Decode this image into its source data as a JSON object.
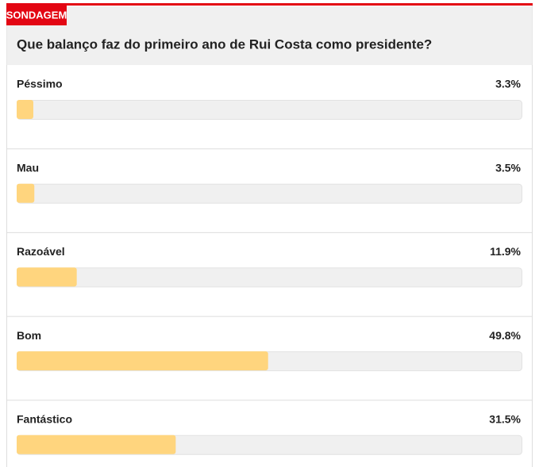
{
  "chart_data": {
    "type": "bar",
    "tag": "SONDAGEM",
    "title": "Que balanço faz do primeiro ano de Rui Costa como presidente?",
    "categories": [
      "Péssimo",
      "Mau",
      "Razoável",
      "Bom",
      "Fantástico"
    ],
    "values": [
      3.3,
      3.5,
      11.9,
      49.8,
      31.5
    ],
    "value_labels": [
      "3.3%",
      "3.5%",
      "11.9%",
      "49.8%",
      "31.5%"
    ],
    "xlim": [
      0,
      100
    ],
    "color": "#ffd57e",
    "accent": "#e30613"
  }
}
